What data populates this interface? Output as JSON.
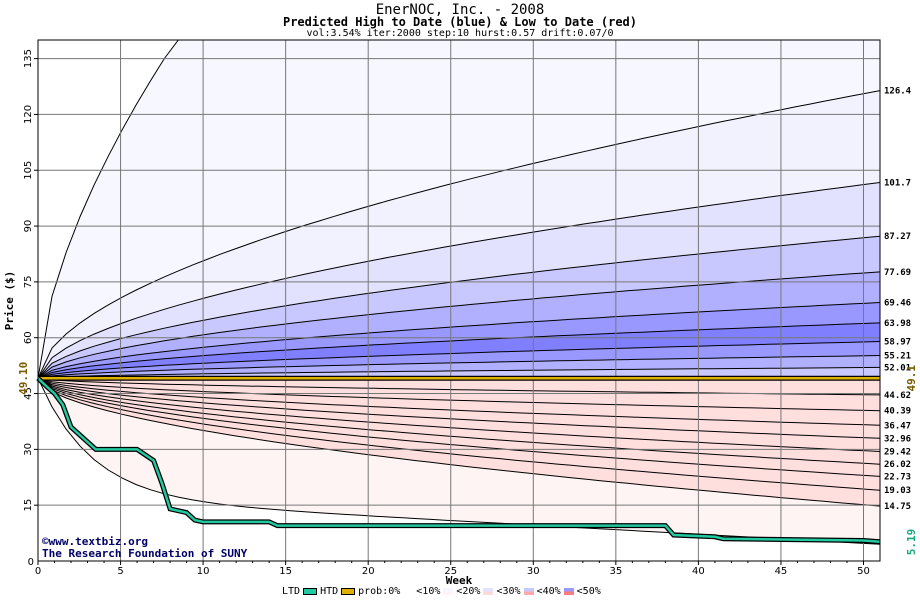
{
  "title": "EnerNOC, Inc. - 2008",
  "subtitle": "Predicted High to Date (blue) &  Low to Date (red)",
  "params": "vol:3.54% iter:2000 step:10 hurst:0.57 drift:0.07/0",
  "credit1": "©www.textbiz.org",
  "credit2": "The Research Foundation of SUNY",
  "chart_data": {
    "type": "area",
    "xlabel": "Week",
    "ylabel": "Price ($)",
    "xlim": [
      0,
      51
    ],
    "ylim": [
      0,
      140
    ],
    "xticks": [
      0,
      5,
      10,
      15,
      20,
      25,
      30,
      35,
      40,
      45,
      50
    ],
    "yticks": [
      15,
      30,
      45,
      60,
      75,
      90,
      105,
      120,
      135
    ],
    "start_price": 49.1,
    "start_label_left": "49.10",
    "start_label_right": "49.1",
    "end_label_ltd": "5.19",
    "high_curves": [
      {
        "label": "126.4",
        "end": 126.4
      },
      {
        "label": "101.7",
        "end": 101.7
      },
      {
        "label": "87.27",
        "end": 87.27
      },
      {
        "label": "77.69",
        "end": 77.69
      },
      {
        "label": "69.46",
        "end": 69.46
      },
      {
        "label": "63.98",
        "end": 63.98
      },
      {
        "label": "58.97",
        "end": 58.97
      },
      {
        "label": "55.21",
        "end": 55.21
      },
      {
        "label": "52.01",
        "end": 52.01
      }
    ],
    "low_curves": [
      {
        "label": "44.62",
        "end": 44.62
      },
      {
        "label": "40.39",
        "end": 40.39
      },
      {
        "label": "36.47",
        "end": 36.47
      },
      {
        "label": "32.96",
        "end": 32.96
      },
      {
        "label": "29.42",
        "end": 29.42
      },
      {
        "label": "26.02",
        "end": 26.02
      },
      {
        "label": "22.73",
        "end": 22.73
      },
      {
        "label": "19.03",
        "end": 19.03
      },
      {
        "label": "14.75",
        "end": 14.75
      }
    ],
    "outer_high_end": 140,
    "outer_low_end": 4.5,
    "htd_line": 49.1,
    "ltd_line": [
      [
        0,
        49.1
      ],
      [
        0.5,
        47
      ],
      [
        1,
        45
      ],
      [
        1.5,
        42
      ],
      [
        2,
        36
      ],
      [
        3,
        32
      ],
      [
        3.5,
        30
      ],
      [
        5,
        30
      ],
      [
        6,
        30
      ],
      [
        7,
        27
      ],
      [
        7.5,
        21
      ],
      [
        8,
        14
      ],
      [
        9,
        13
      ],
      [
        9.5,
        11
      ],
      [
        10,
        10.5
      ],
      [
        14,
        10.5
      ],
      [
        14.5,
        9.5
      ],
      [
        30,
        9.5
      ],
      [
        38,
        9.5
      ],
      [
        38.5,
        7
      ],
      [
        41,
        6.5
      ],
      [
        41.5,
        6
      ],
      [
        50,
        5.5
      ],
      [
        51,
        5.19
      ]
    ],
    "legend": [
      "LTD",
      "HTD",
      "prob:0%",
      "<10%",
      "<20%",
      "<30%",
      "<40%",
      "<50%"
    ],
    "colors": {
      "ltd": "#22c9a0",
      "htd": "#e0b000",
      "high_bands": [
        "#f2f2ff",
        "#e2e2ff",
        "#c8c8ff",
        "#b0b0ff",
        "#9898ff",
        "#8080ff",
        "#9898ff",
        "#b0b0ff",
        "#c8c8ff"
      ],
      "low_bands": [
        "#ffd9d9",
        "#ffc2c2",
        "#ffaaaa",
        "#ff9090",
        "#ff7c7c",
        "#ff9090",
        "#ffaaaa",
        "#ffc8c8",
        "#ffdede"
      ],
      "outer_high": "#f7f7ff",
      "outer_low": "#fff4f4"
    }
  }
}
